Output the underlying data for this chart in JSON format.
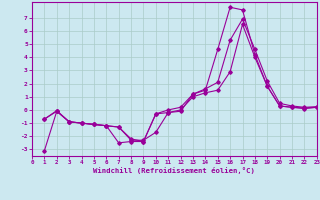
{
  "xlabel": "Windchill (Refroidissement éolien,°C)",
  "background_color": "#cce8f0",
  "grid_color": "#aaccc8",
  "line_color": "#990099",
  "xlim": [
    0,
    23
  ],
  "ylim": [
    -3.5,
    8.2
  ],
  "yticks": [
    -3,
    -2,
    -1,
    0,
    1,
    2,
    3,
    4,
    5,
    6,
    7
  ],
  "xticks": [
    0,
    1,
    2,
    3,
    4,
    5,
    6,
    7,
    8,
    9,
    10,
    11,
    12,
    13,
    14,
    15,
    16,
    17,
    18,
    19,
    20,
    21,
    22,
    23
  ],
  "series": [
    {
      "x": [
        1,
        2,
        3,
        4,
        5,
        6,
        7,
        8,
        9,
        10,
        11,
        12,
        13,
        14,
        15,
        16,
        17,
        18,
        19,
        20,
        21,
        22,
        23
      ],
      "y": [
        -0.7,
        -0.1,
        -0.9,
        -1.0,
        -1.1,
        -1.2,
        -2.5,
        -2.4,
        -2.4,
        -0.3,
        -0.2,
        -0.1,
        1.2,
        1.5,
        4.6,
        7.8,
        7.6,
        4.2,
        1.8,
        0.3,
        0.2,
        0.1,
        0.2
      ]
    },
    {
      "x": [
        1,
        2,
        3,
        4,
        5,
        6,
        7,
        8,
        9,
        10,
        11,
        12,
        13,
        14,
        15,
        16,
        17,
        18,
        19,
        20,
        21,
        22,
        23
      ],
      "y": [
        -3.1,
        -0.1,
        -0.9,
        -1.0,
        -1.1,
        -1.2,
        -1.3,
        -2.3,
        -2.3,
        -1.7,
        -0.2,
        0.0,
        1.0,
        1.3,
        1.5,
        2.9,
        6.5,
        4.0,
        1.8,
        0.3,
        0.2,
        0.15,
        0.2
      ]
    },
    {
      "x": [
        1,
        2,
        3,
        4,
        5,
        6,
        7,
        8,
        9,
        10,
        11,
        12,
        13,
        14,
        15,
        16,
        17,
        18,
        19,
        20,
        21,
        22,
        23
      ],
      "y": [
        -0.7,
        -0.05,
        -0.9,
        -1.0,
        -1.1,
        -1.2,
        -1.3,
        -2.2,
        -2.4,
        -0.3,
        0.0,
        0.2,
        1.2,
        1.6,
        2.1,
        5.3,
        6.9,
        4.6,
        2.2,
        0.5,
        0.3,
        0.2,
        0.25
      ]
    }
  ]
}
